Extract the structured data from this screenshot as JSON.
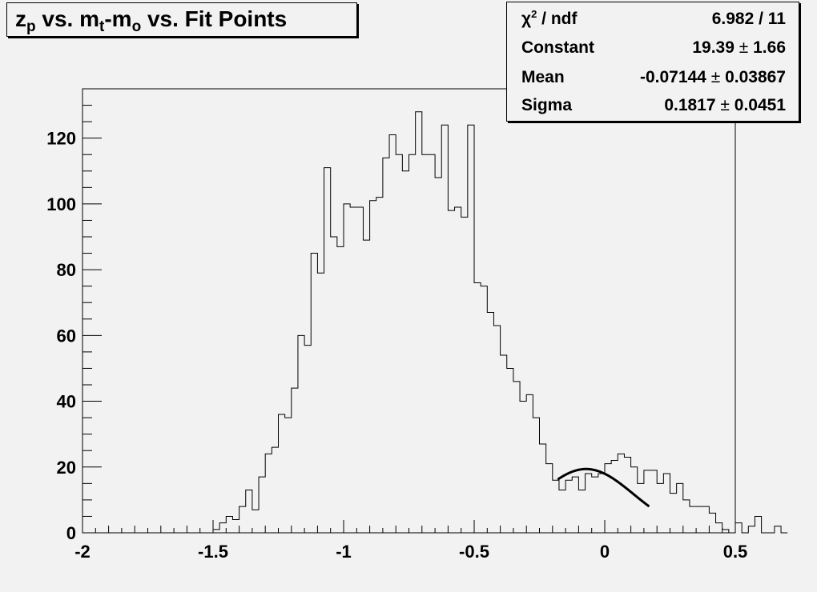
{
  "title": {
    "parts": [
      {
        "text": "z",
        "sub": "p"
      },
      {
        "text": " vs. m",
        "sub": "t"
      },
      {
        "text": "-m",
        "sub": "o"
      },
      {
        "text": " vs. Fit Points"
      }
    ]
  },
  "stats": {
    "chi2_label": "χ",
    "chi2_sup": "2",
    "chi2_tail": " / ndf",
    "chi2_value": "6.982 / 11",
    "rows": [
      {
        "label": "Constant",
        "value": "19.39",
        "error": "1.66"
      },
      {
        "label": "Mean",
        "value": "-0.07144",
        "error": "0.03867"
      },
      {
        "label": "Sigma",
        "value": "0.1817",
        "error": "0.0451"
      }
    ],
    "pm_symbol": "±"
  },
  "chart_data": {
    "type": "histogram",
    "xlim": [
      -2,
      0.5
    ],
    "ylim": [
      0,
      135
    ],
    "x_ticks": [
      -2,
      -1.5,
      -1,
      -0.5,
      0,
      0.5
    ],
    "x_tick_labels": [
      "-2",
      "-1.5",
      "-1",
      "-0.5",
      "0",
      "0.5"
    ],
    "y_ticks": [
      0,
      20,
      40,
      60,
      80,
      100,
      120
    ],
    "y_tick_labels": [
      "0",
      "20",
      "40",
      "60",
      "80",
      "100",
      "120"
    ],
    "bin_width": 0.025,
    "bins_start": -1.5,
    "counts": [
      1,
      3,
      5,
      4,
      8,
      13,
      7,
      17,
      24,
      26,
      36,
      35,
      44,
      60,
      57,
      85,
      79,
      111,
      90,
      87,
      100,
      99,
      99,
      89,
      101,
      102,
      114,
      121,
      115,
      110,
      115,
      128,
      115,
      115,
      108,
      124,
      98,
      99,
      96,
      124,
      76,
      75,
      67,
      63,
      54,
      50,
      46,
      40,
      42,
      35,
      27,
      21,
      16,
      13,
      16,
      17,
      13,
      18,
      17,
      18,
      21,
      22,
      24,
      23,
      20,
      15,
      19,
      19,
      15,
      18,
      12,
      15,
      10,
      8,
      8,
      8,
      6,
      3,
      1,
      0,
      3,
      0,
      2,
      5,
      0,
      0,
      2,
      0
    ],
    "fit": {
      "function": "gaus",
      "constant": 19.39,
      "mean": -0.07144,
      "sigma": 0.1817,
      "x_range": [
        -0.18,
        0.17
      ]
    },
    "colors": {
      "background": "#f2f2f2",
      "line": "#000000"
    }
  }
}
